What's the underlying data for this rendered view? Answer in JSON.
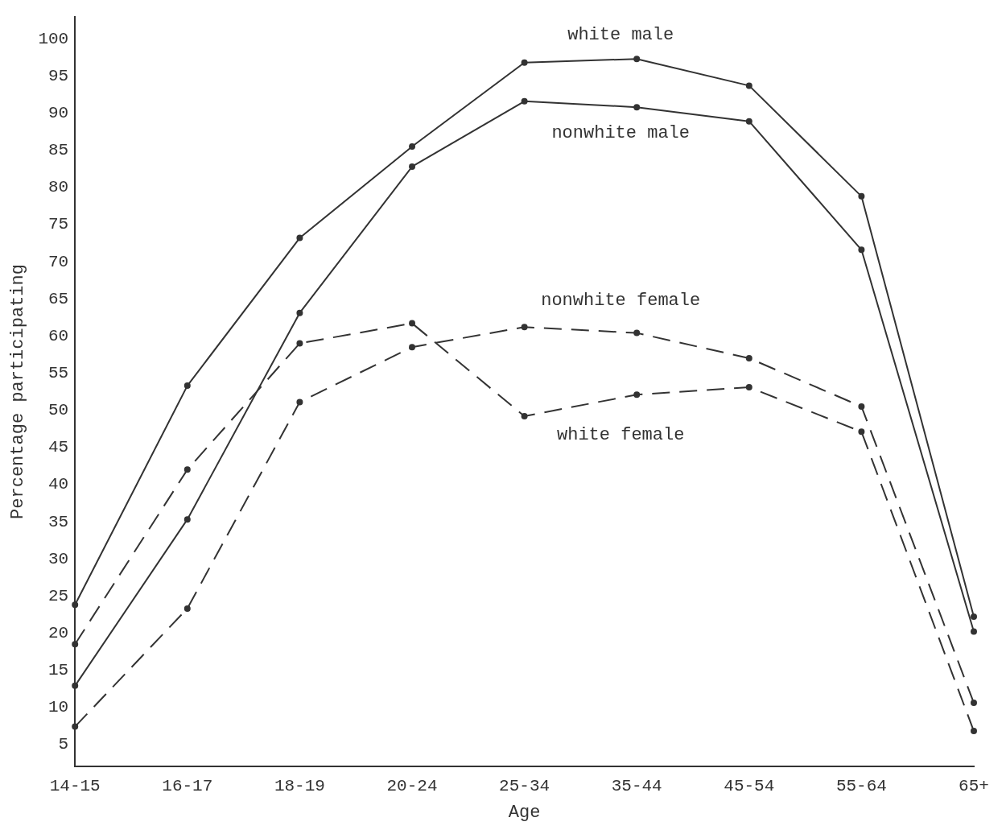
{
  "chart_data": {
    "type": "line",
    "xlabel": "Age",
    "ylabel": "Percentage participating",
    "categories": [
      "14-15",
      "16-17",
      "18-19",
      "20-24",
      "25-34",
      "35-44",
      "45-54",
      "55-64",
      "65+"
    ],
    "series": [
      {
        "name": "white male",
        "color": "#333333",
        "line_style": "solid",
        "values": [
          23.8,
          53.3,
          73.2,
          85.5,
          96.8,
          97.3,
          93.7,
          78.8,
          22.2
        ]
      },
      {
        "name": "nonwhite male",
        "color": "#333333",
        "line_style": "solid",
        "values": [
          12.9,
          35.3,
          63.1,
          82.8,
          91.6,
          90.8,
          88.9,
          71.6,
          20.2
        ]
      },
      {
        "name": "white female",
        "color": "#333333",
        "line_style": "dashed",
        "values": [
          18.5,
          42.0,
          59.0,
          61.7,
          49.2,
          52.1,
          53.1,
          47.1,
          6.8
        ]
      },
      {
        "name": "nonwhite female",
        "color": "#333333",
        "line_style": "dashed",
        "values": [
          7.4,
          23.3,
          51.1,
          58.5,
          61.2,
          60.4,
          57.0,
          50.5,
          10.6
        ]
      }
    ],
    "ylim": [
      2,
      103
    ],
    "yticks": [
      5,
      10,
      15,
      20,
      25,
      30,
      35,
      40,
      45,
      50,
      55,
      60,
      65,
      70,
      75,
      80,
      85,
      90,
      95,
      100
    ],
    "grid": false,
    "legend": false,
    "marker": "circle"
  }
}
